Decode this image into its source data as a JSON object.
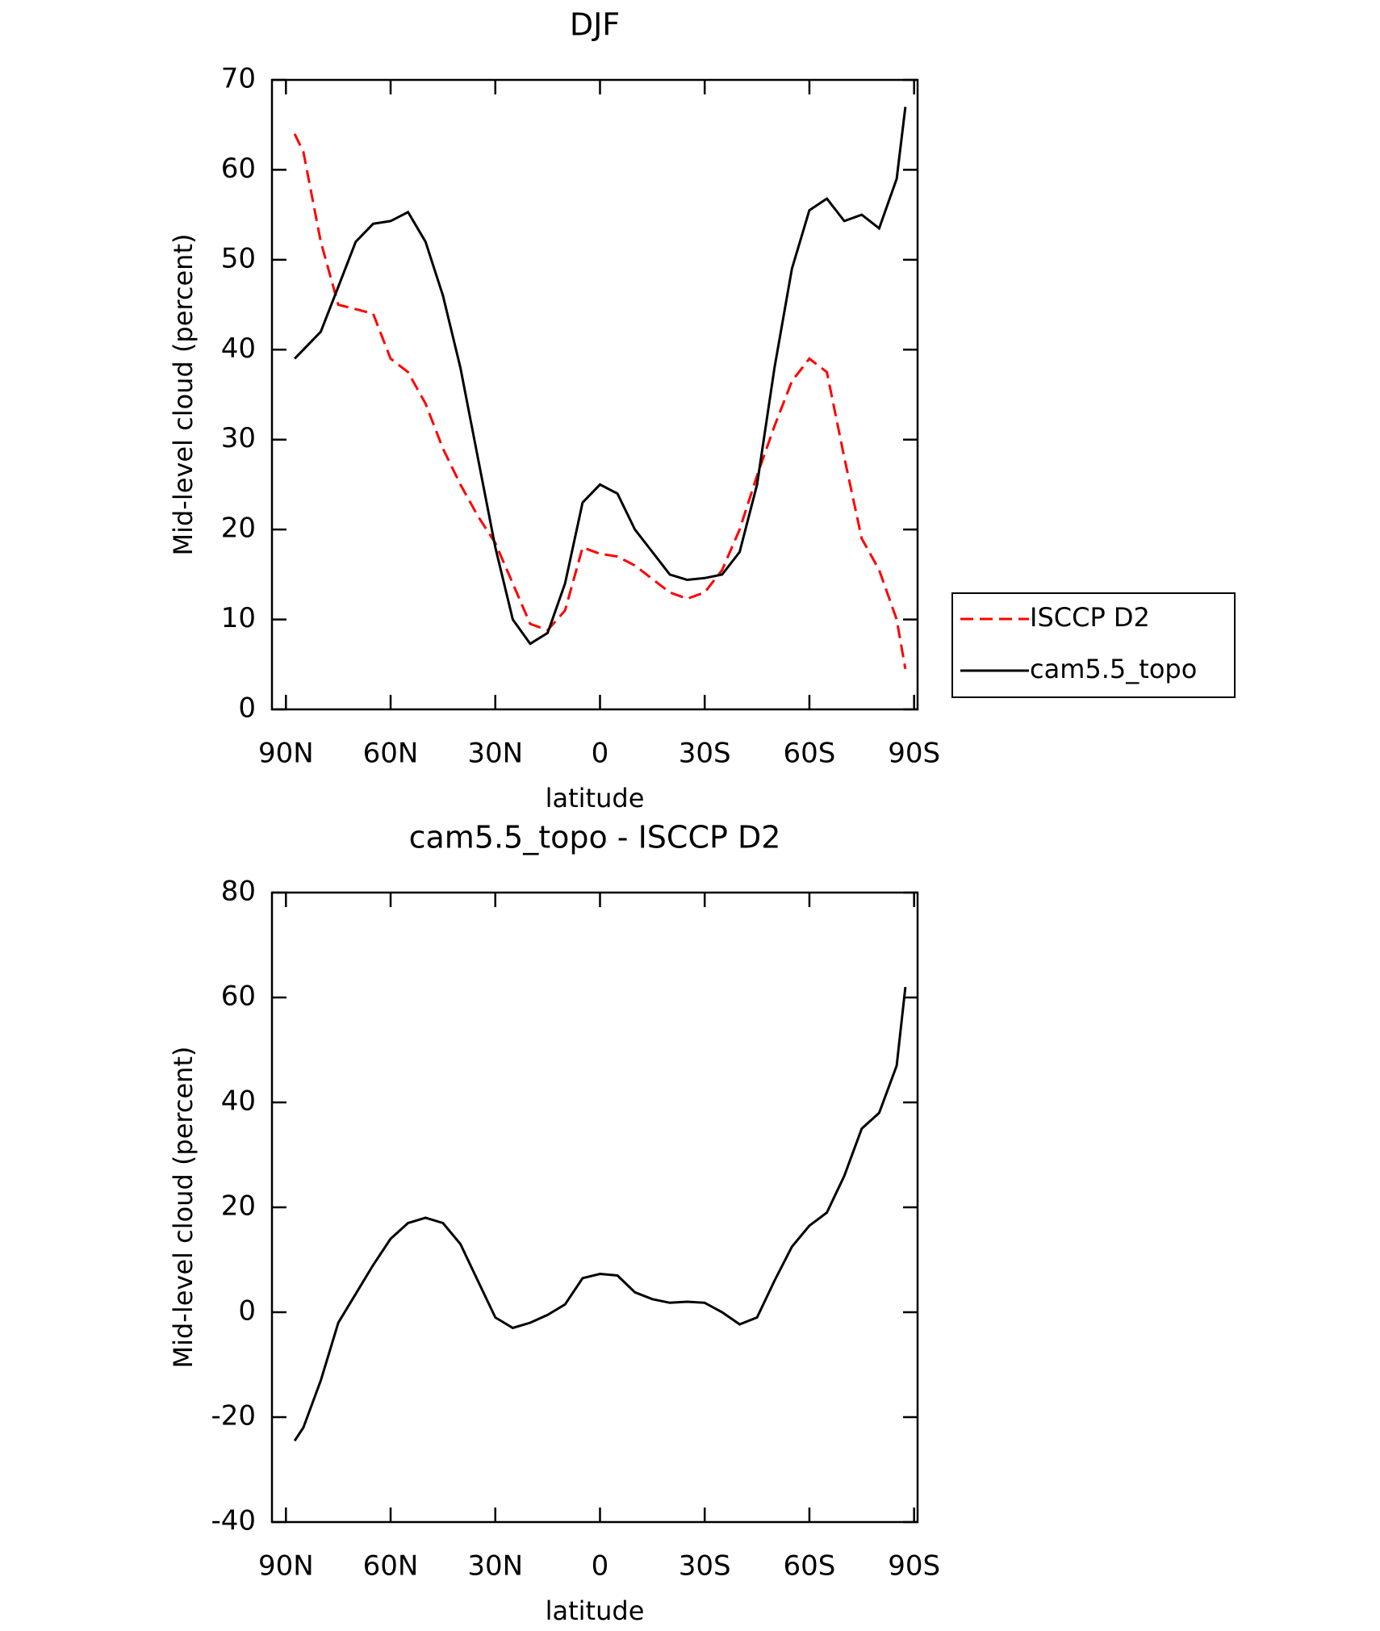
{
  "chart_data": [
    {
      "type": "line",
      "title": "DJF",
      "x_label": "latitude",
      "y_label": "Mid-level cloud (percent)",
      "x": [
        87.5,
        85,
        80,
        75,
        70,
        65,
        60,
        55,
        50,
        45,
        40,
        35,
        30,
        25,
        20,
        15,
        10,
        5,
        0,
        -5,
        -10,
        -15,
        -20,
        -25,
        -30,
        -35,
        -40,
        -45,
        -50,
        -55,
        -60,
        -65,
        -70,
        -75,
        -80,
        -85,
        -87.5
      ],
      "series": [
        {
          "name": "ISCCP D2",
          "color": "#ff0000",
          "dash": "dashed",
          "values": [
            64,
            62,
            52,
            45,
            44.5,
            44,
            39,
            37.5,
            34,
            29,
            25,
            21.5,
            18.5,
            14,
            9.5,
            8.8,
            11,
            18,
            17.3,
            17,
            16,
            14.5,
            13,
            12.3,
            13,
            15.5,
            20,
            26,
            31.5,
            36.5,
            39,
            37.5,
            28,
            19,
            15.5,
            10,
            4.5
          ]
        },
        {
          "name": "cam5.5_topo",
          "color": "#000000",
          "dash": "solid",
          "values": [
            39,
            40,
            42,
            47,
            52,
            54,
            54.3,
            55.3,
            52,
            46,
            38,
            28,
            18,
            10,
            7.3,
            8.5,
            14,
            23,
            25,
            24,
            20,
            17.5,
            15,
            14.4,
            14.6,
            15,
            17.5,
            25,
            38,
            49,
            55.5,
            56.8,
            54.3,
            55,
            53.5,
            59,
            67
          ]
        }
      ],
      "xlim": [
        94,
        -91
      ],
      "xticks": [
        {
          "value": 90,
          "label": "90N"
        },
        {
          "value": 60,
          "label": "60N"
        },
        {
          "value": 30,
          "label": "30N"
        },
        0,
        {
          "value": -30,
          "label": "30S"
        },
        {
          "value": -60,
          "label": "60S"
        },
        {
          "value": -90,
          "label": "90S"
        }
      ],
      "ylim": [
        0,
        70
      ],
      "yticks": [
        0,
        10,
        20,
        30,
        40,
        50,
        60,
        70
      ],
      "legend": "right"
    },
    {
      "type": "line",
      "title": "cam5.5_topo - ISCCP D2",
      "x_label": "latitude",
      "y_label": "Mid-level cloud (percent)",
      "x": [
        87.5,
        85,
        80,
        75,
        70,
        65,
        60,
        55,
        50,
        45,
        40,
        35,
        30,
        25,
        20,
        15,
        10,
        5,
        0,
        -5,
        -10,
        -15,
        -20,
        -25,
        -30,
        -35,
        -40,
        -45,
        -50,
        -55,
        -60,
        -65,
        -70,
        -75,
        -80,
        -85,
        -87.5
      ],
      "series": [
        {
          "color": "#000000",
          "dash": "solid",
          "values": [
            -24.5,
            -22,
            -13,
            -2,
            3.5,
            9,
            14,
            17,
            18,
            17,
            13,
            6,
            -1,
            -3,
            -2,
            -0.5,
            1.5,
            6.5,
            7.3,
            7,
            3.8,
            2.5,
            1.8,
            2,
            1.8,
            0,
            -2.3,
            -1,
            6,
            12.5,
            16.5,
            19,
            26,
            35,
            38,
            47,
            62
          ]
        }
      ],
      "xlim": [
        94,
        -91
      ],
      "xticks": [
        {
          "value": 90,
          "label": "90N"
        },
        {
          "value": 60,
          "label": "60N"
        },
        {
          "value": 30,
          "label": "30N"
        },
        0,
        {
          "value": -30,
          "label": "30S"
        },
        {
          "value": -60,
          "label": "60S"
        },
        {
          "value": -90,
          "label": "90S"
        }
      ],
      "ylim": [
        -40,
        80
      ],
      "yticks": [
        -40,
        -20,
        0,
        20,
        40,
        60,
        80
      ]
    }
  ]
}
